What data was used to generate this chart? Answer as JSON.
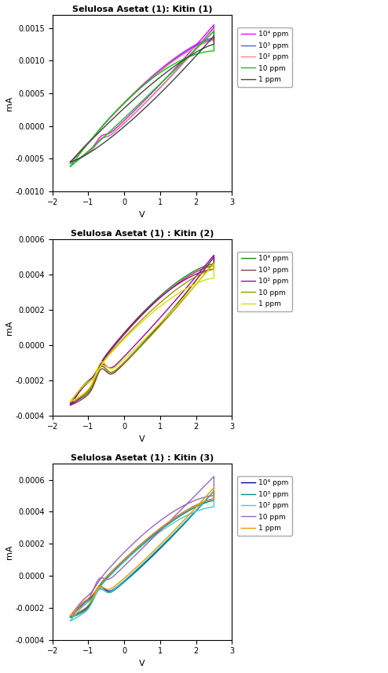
{
  "plots": [
    {
      "title": "Selulosa Asetat (1): Kitin (1)",
      "ylabel": "mA",
      "xlabel": "V",
      "xlim": [
        -2,
        3
      ],
      "ylim": [
        -0.001,
        0.0017
      ],
      "yticks": [
        -0.001,
        -0.0005,
        0.0,
        0.0005,
        0.001,
        0.0015
      ],
      "xticks": [
        -2,
        -1,
        0,
        1,
        2,
        3
      ],
      "series": [
        {
          "label": "10⁴ ppm",
          "color": "#FF00FF",
          "lw": 1.0
        },
        {
          "label": "10³ ppm",
          "color": "#5555FF",
          "lw": 1.0
        },
        {
          "label": "10² ppm",
          "color": "#FF8888",
          "lw": 1.0
        },
        {
          "label": "10 ppm",
          "color": "#00CC00",
          "lw": 1.0
        },
        {
          "label": "1 ppm",
          "color": "#444444",
          "lw": 1.0
        }
      ]
    },
    {
      "title": "Selulosa Asetat (1) : Kitin (2)",
      "ylabel": "mA",
      "xlabel": "V",
      "xlim": [
        -2,
        3
      ],
      "ylim": [
        -0.0004,
        0.0006
      ],
      "yticks": [
        -0.0004,
        -0.0002,
        0.0,
        0.0002,
        0.0004,
        0.0006
      ],
      "xticks": [
        -2,
        -1,
        0,
        1,
        2,
        3
      ],
      "series": [
        {
          "label": "10⁴ ppm",
          "color": "#228B22",
          "lw": 1.0
        },
        {
          "label": "10³ ppm",
          "color": "#8B4040",
          "lw": 1.0
        },
        {
          "label": "10² ppm",
          "color": "#AA00AA",
          "lw": 1.0
        },
        {
          "label": "10 ppm",
          "color": "#999900",
          "lw": 1.0
        },
        {
          "label": "1 ppm",
          "color": "#DDDD00",
          "lw": 1.0
        }
      ]
    },
    {
      "title": "Selulosa Asetat (1) : Kitin (3)",
      "ylabel": "mA",
      "xlabel": "V",
      "xlim": [
        -2,
        3
      ],
      "ylim": [
        -0.0004,
        0.0007
      ],
      "yticks": [
        -0.0004,
        -0.0002,
        0.0,
        0.0002,
        0.0004,
        0.0006
      ],
      "xticks": [
        -2,
        -1,
        0,
        1,
        2,
        3
      ],
      "series": [
        {
          "label": "10⁴ ppm",
          "color": "#000099",
          "lw": 1.0
        },
        {
          "label": "10³ ppm",
          "color": "#008888",
          "lw": 1.0
        },
        {
          "label": "10² ppm",
          "color": "#44CCCC",
          "lw": 1.0
        },
        {
          "label": "10 ppm",
          "color": "#9966BB",
          "lw": 1.0
        },
        {
          "label": "1 ppm",
          "color": "#EE9900",
          "lw": 1.0
        }
      ]
    }
  ]
}
